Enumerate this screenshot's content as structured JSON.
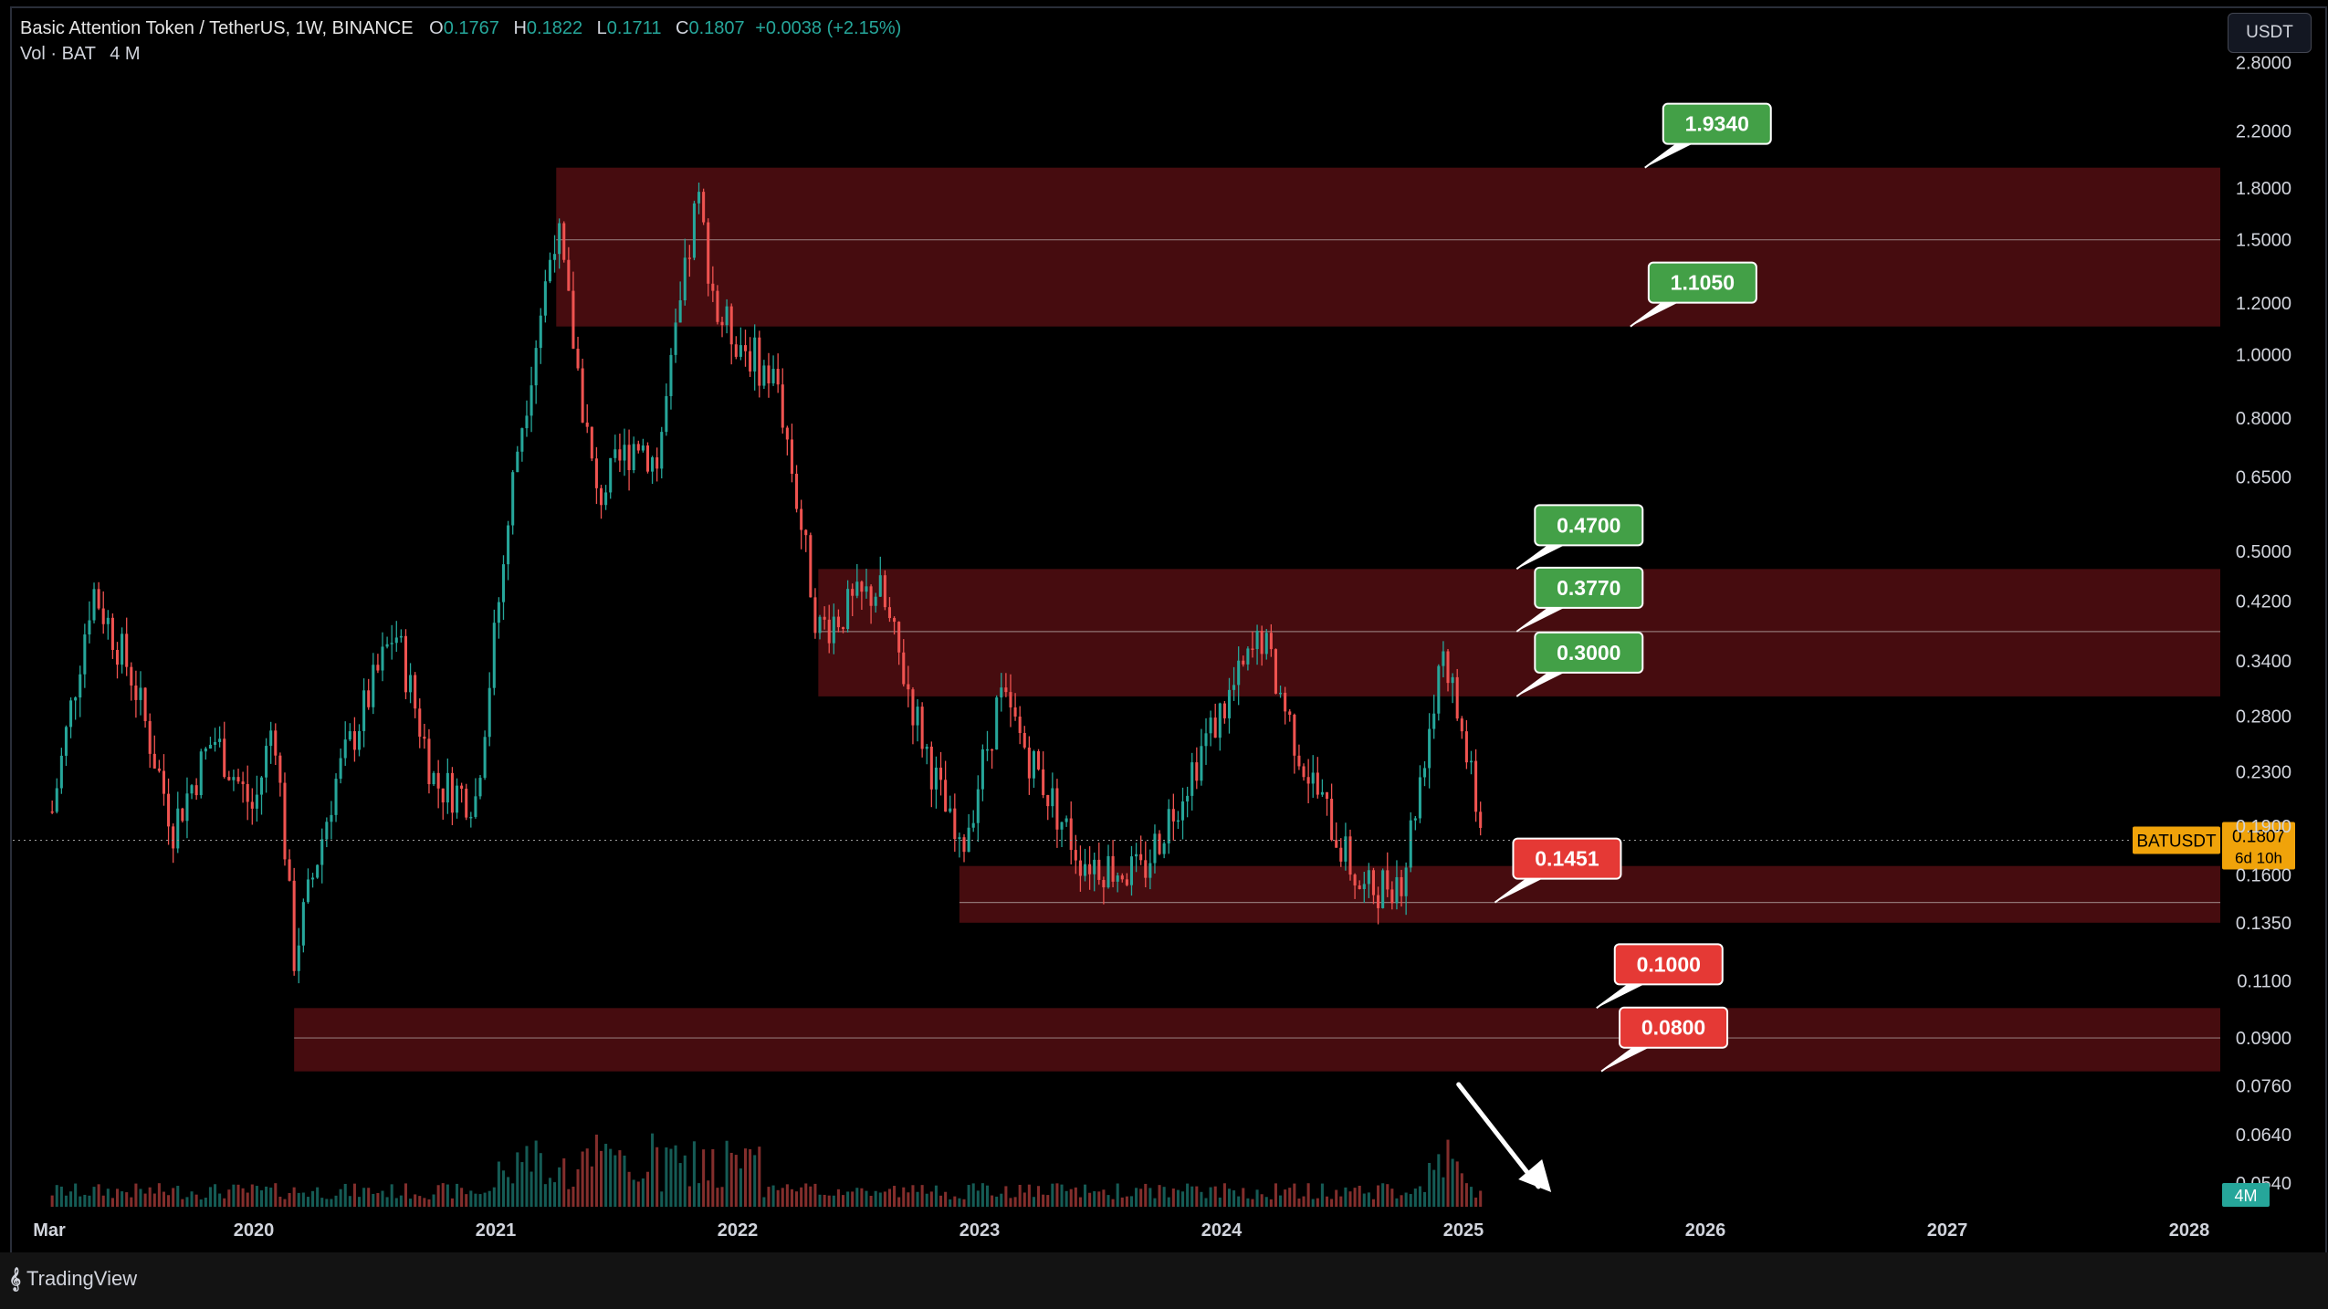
{
  "header": {
    "symbol_line": "Basic Attention Token / TetherUS, 1W, BINANCE",
    "o_label": "O",
    "o_value": "0.1767",
    "h_label": "H",
    "h_value": "0.1822",
    "l_label": "L",
    "l_value": "0.1711",
    "c_label": "C",
    "c_value": "0.1807",
    "change": "+0.0038 (+2.15%)",
    "vol_label": "Vol · BAT",
    "vol_value": "4 M"
  },
  "currency_button": "USDT",
  "brand": "TradingView",
  "colors": {
    "up": "#26a69a",
    "down": "#ef5350",
    "zone": "#4a0d10",
    "label_green": "#43a047",
    "label_red": "#e53935",
    "price_tag": "#f0a30a"
  },
  "chart_data": {
    "type": "candlestick",
    "y_scale": "log",
    "x_ticks": [
      "Mar",
      "2020",
      "2021",
      "2022",
      "2023",
      "2024",
      "2025",
      "2026",
      "2027",
      "2028"
    ],
    "y_ticks": [
      "2.8000",
      "2.2000",
      "1.8000",
      "1.5000",
      "1.2000",
      "1.0000",
      "0.8000",
      "0.6500",
      "0.5000",
      "0.4200",
      "0.3400",
      "0.2800",
      "0.2300",
      "0.1900",
      "0.1600",
      "0.1350",
      "0.1100",
      "0.0900",
      "0.0760",
      "0.0640",
      "0.0540"
    ],
    "last_price": {
      "symbol": "BATUSDT",
      "value": "0.1807",
      "countdown": "6d 10h"
    },
    "volume_tag": "4M",
    "zones": [
      {
        "top": 1.934,
        "bottom": 1.105,
        "mid": 1.5,
        "from": "2021-04"
      },
      {
        "top": 0.47,
        "bottom": 0.3,
        "mid": 0.377,
        "from": "2022-05"
      },
      {
        "top": 0.165,
        "bottom": 0.1351,
        "mid": 0.1451,
        "from": "2022-12"
      },
      {
        "top": 0.1,
        "bottom": 0.08,
        "mid": 0.09,
        "from": "2020-03"
      }
    ],
    "levels": [
      {
        "label": "1.9340",
        "kind": "resistance"
      },
      {
        "label": "1.1050",
        "kind": "resistance"
      },
      {
        "label": "0.4700",
        "kind": "resistance"
      },
      {
        "label": "0.3770",
        "kind": "resistance"
      },
      {
        "label": "0.3000",
        "kind": "resistance"
      },
      {
        "label": "0.1451",
        "kind": "support"
      },
      {
        "label": "0.1000",
        "kind": "support"
      },
      {
        "label": "0.0800",
        "kind": "support"
      }
    ],
    "price_path": [
      [
        "2019-03",
        0.2
      ],
      [
        "2019-05",
        0.44
      ],
      [
        "2019-07",
        0.32
      ],
      [
        "2019-09",
        0.19
      ],
      [
        "2019-11",
        0.26
      ],
      [
        "2020-01",
        0.2
      ],
      [
        "2020-02",
        0.28
      ],
      [
        "2020-03",
        0.12
      ],
      [
        "2020-05",
        0.22
      ],
      [
        "2020-08",
        0.38
      ],
      [
        "2020-10",
        0.22
      ],
      [
        "2020-12",
        0.21
      ],
      [
        "2021-02",
        0.7
      ],
      [
        "2021-04",
        1.6
      ],
      [
        "2021-06",
        0.6
      ],
      [
        "2021-08",
        0.75
      ],
      [
        "2021-09",
        0.68
      ],
      [
        "2021-11",
        1.75
      ],
      [
        "2021-12",
        1.15
      ],
      [
        "2022-03",
        0.9
      ],
      [
        "2022-05",
        0.38
      ],
      [
        "2022-08",
        0.44
      ],
      [
        "2022-10",
        0.27
      ],
      [
        "2022-12",
        0.17
      ],
      [
        "2023-02",
        0.3
      ],
      [
        "2023-06",
        0.17
      ],
      [
        "2023-09",
        0.16
      ],
      [
        "2023-12",
        0.25
      ],
      [
        "2024-03",
        0.37
      ],
      [
        "2024-05",
        0.24
      ],
      [
        "2024-08",
        0.15
      ],
      [
        "2024-10",
        0.16
      ],
      [
        "2024-12",
        0.36
      ],
      [
        "2025-02",
        0.1807
      ]
    ]
  }
}
